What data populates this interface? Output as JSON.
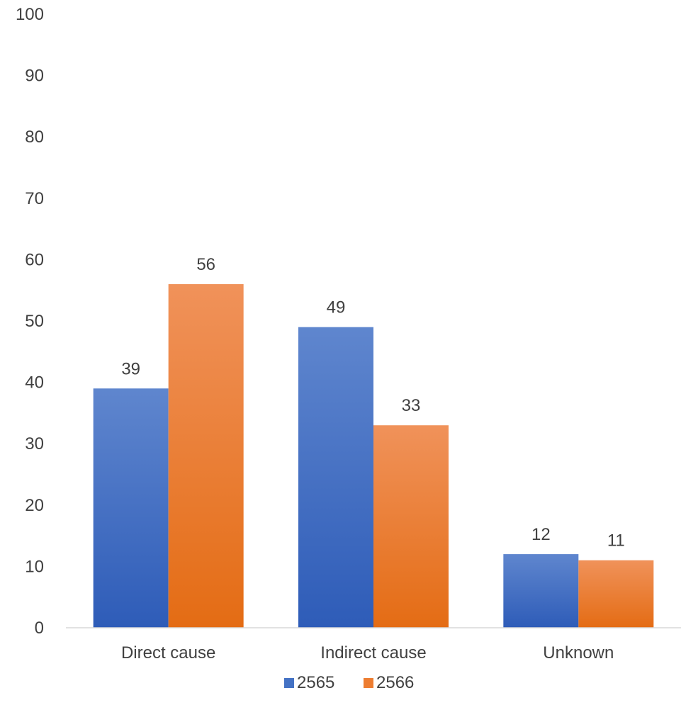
{
  "chart_data": {
    "type": "bar",
    "title": "",
    "xlabel": "",
    "ylabel": "",
    "categories": [
      "Direct cause",
      "Indirect cause",
      "Unknown"
    ],
    "series": [
      {
        "name": "2565",
        "values": [
          39,
          49,
          12
        ],
        "color": "#4472C4"
      },
      {
        "name": "2566",
        "values": [
          56,
          33,
          11
        ],
        "color": "#ED7D31"
      }
    ],
    "ylim": [
      0,
      100
    ],
    "yticks": [
      "0",
      "10",
      "20",
      "30",
      "40",
      "50",
      "60",
      "70",
      "80",
      "90",
      "100"
    ],
    "grid": false,
    "data_labels": true,
    "legend": "bottom"
  }
}
